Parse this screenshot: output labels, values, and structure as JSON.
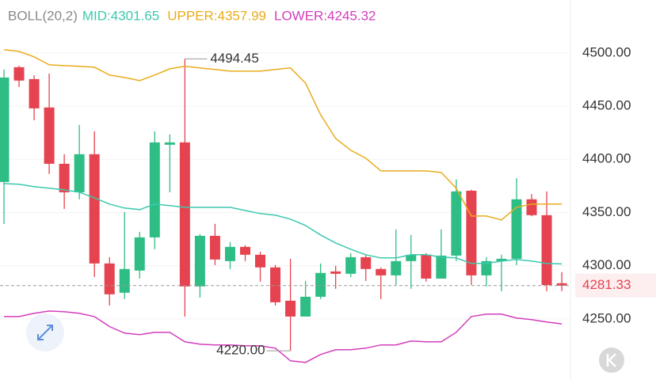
{
  "chart_data": {
    "type": "candlestick",
    "indicator": "BOLL(20,2)",
    "ylim": [
      4200,
      4520
    ],
    "yticks": [
      {
        "value": 4250,
        "label": "4250.00"
      },
      {
        "value": 4300,
        "label": "4300.00"
      },
      {
        "value": 4350,
        "label": "4350.00"
      },
      {
        "value": 4400,
        "label": "4400.00"
      },
      {
        "value": 4450,
        "label": "4450.00"
      },
      {
        "value": 4500,
        "label": "4500.00"
      }
    ],
    "grid": true,
    "up_color": "#2ebd85",
    "down_color": "#e5434f",
    "candles": {
      "open": [
        4378.7,
        4486.6,
        4475.4,
        4448.7,
        4395.8,
        4369.0,
        4404.8,
        4302.1,
        4274.6,
        4295.4,
        4326.6,
        4413.7,
        4415.9,
        4280.5,
        4328.1,
        4304.3,
        4317.7,
        4310.3,
        4298.4,
        4267.1,
        4252.2,
        4270.8,
        4294.6,
        4292.4,
        4308.0,
        4296.9,
        4290.9,
        4304.3,
        4310.3,
        4287.9,
        4309.5,
        4370.5,
        4290.9,
        4304.3,
        4306.5,
        4362.4,
        4347.5,
        4283.5
      ],
      "high": [
        4484.4,
        4488.0,
        4479.0,
        4480.7,
        4404.8,
        4432.3,
        4426.3,
        4308.0,
        4350.4,
        4331.8,
        4426.3,
        4423.4,
        4494.45,
        4329.6,
        4339.3,
        4322.2,
        4319.2,
        4313.2,
        4300.6,
        4306.5,
        4285.7,
        4302.1,
        4299.9,
        4311.8,
        4310.3,
        4298.4,
        4334.1,
        4328.9,
        4311.8,
        4334.1,
        4381.0,
        4371.3,
        4308.0,
        4310.3,
        4382.3,
        4367.3,
        4369.8,
        4294.0
      ],
      "low": [
        4339.3,
        4468.0,
        4436.8,
        4386.2,
        4353.4,
        4362.4,
        4289.4,
        4262.6,
        4268.6,
        4287.9,
        4315.5,
        4369.0,
        4252.2,
        4270.1,
        4300.6,
        4296.9,
        4304.3,
        4285.0,
        4262.6,
        4220.0,
        4252.2,
        4268.6,
        4278.3,
        4289.4,
        4285.7,
        4268.6,
        4282.0,
        4278.3,
        4285.0,
        4287.9,
        4304.3,
        4282.0,
        4280.5,
        4276.0,
        4300.6,
        4346.5,
        4276.0,
        4276.0
      ],
      "close": [
        4476.9,
        4474.0,
        4447.9,
        4395.8,
        4369.0,
        4404.8,
        4302.1,
        4273.1,
        4296.9,
        4326.6,
        4415.9,
        4415.9,
        4280.5,
        4328.1,
        4305.8,
        4317.7,
        4310.3,
        4298.4,
        4265.6,
        4252.2,
        4270.8,
        4293.2,
        4292.4,
        4308.0,
        4296.9,
        4290.9,
        4304.3,
        4310.3,
        4287.9,
        4309.5,
        4369.8,
        4290.9,
        4304.3,
        4306.5,
        4362.4,
        4347.5,
        4281.8,
        4281.33
      ]
    },
    "series": [
      {
        "name": "MID:4301.65",
        "color": "#3cc8ae",
        "values": [
          4377.2,
          4376.5,
          4374.3,
          4372.8,
          4371.3,
          4369.1,
          4363.8,
          4357.9,
          4354.2,
          4352.7,
          4357.9,
          4356.4,
          4354.9,
          4354.9,
          4354.9,
          4354.9,
          4351.9,
          4349.0,
          4347.5,
          4343.8,
          4337.8,
          4328.9,
          4321.4,
          4315.5,
          4310.3,
          4307.3,
          4307.3,
          4310.3,
          4310.3,
          4308.0,
          4307.3,
          4302.1,
          4302.1,
          4304.3,
          4305.8,
          4304.3,
          4302.1,
          4301.65
        ]
      },
      {
        "name": "UPPER:4357.99",
        "color": "#e9ac1c",
        "values": [
          4503.0,
          4501.5,
          4496.3,
          4488.8,
          4488.1,
          4487.4,
          4486.6,
          4479.2,
          4476.9,
          4474.0,
          4479.2,
          4485.1,
          4487.4,
          4485.9,
          4484.4,
          4482.9,
          4482.9,
          4482.9,
          4484.4,
          4485.9,
          4471.7,
          4442.0,
          4419.6,
          4408.5,
          4401.0,
          4389.1,
          4389.1,
          4389.1,
          4389.1,
          4387.6,
          4372.8,
          4346.7,
          4346.7,
          4343.0,
          4354.9,
          4358.0,
          4358.0,
          4357.99
        ]
      },
      {
        "name": "LOWER:4245.32",
        "color": "#d43dbd",
        "values": [
          4252.2,
          4252.2,
          4255.2,
          4257.4,
          4256.7,
          4255.2,
          4252.2,
          4242.8,
          4236.6,
          4235.1,
          4237.4,
          4237.4,
          4228.4,
          4226.2,
          4225.5,
          4225.5,
          4224.7,
          4224.7,
          4222.5,
          4210.6,
          4209.1,
          4216.5,
          4221.0,
          4221.0,
          4222.5,
          4225.5,
          4225.5,
          4229.2,
          4228.4,
          4228.4,
          4237.4,
          4252.2,
          4254.5,
          4254.5,
          4250.8,
          4249.3,
          4247.0,
          4245.32
        ]
      }
    ],
    "high_label": 4494.45,
    "low_label": {
      "value": 4220,
      "label": "4220.00"
    },
    "last_price": 4281.33
  }
}
